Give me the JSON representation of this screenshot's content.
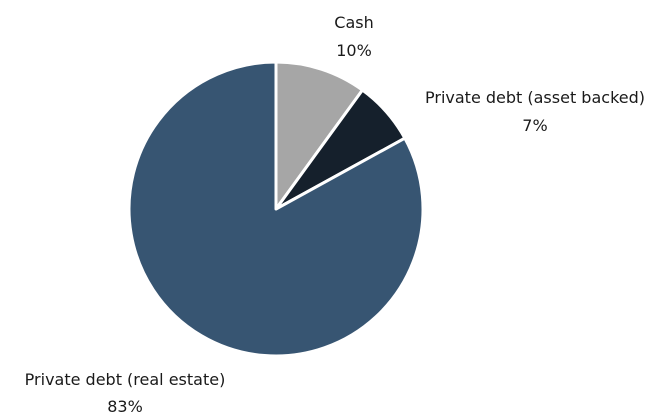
{
  "chart_data": {
    "type": "pie",
    "title": "",
    "slices": [
      {
        "label": "Cash",
        "value": 10,
        "value_label": "10%",
        "color": "#a6a6a6"
      },
      {
        "label": "Private debt (asset backed)",
        "value": 7,
        "value_label": "7%",
        "color": "#15202c"
      },
      {
        "label": "Private debt (real estate)",
        "value": 83,
        "value_label": "83%",
        "color": "#375572"
      }
    ],
    "start_angle": "12 o'clock",
    "direction": "clockwise",
    "legend": "none",
    "slice_border_color": "#ffffff"
  }
}
